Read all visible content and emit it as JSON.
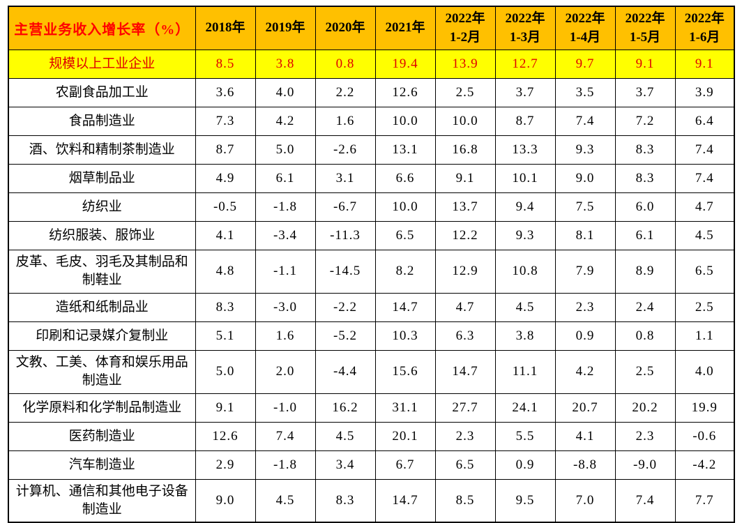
{
  "colors": {
    "header_bg": "#ffc000",
    "header_title_color": "#ff0000",
    "header_year_color": "#000000",
    "highlight_bg": "#ffff00",
    "highlight_text_color": "#e00000",
    "body_text_color": "#000000",
    "border_color": "#000000"
  },
  "table": {
    "title": "主营业务收入增长率（%）",
    "columns": [
      "2018年",
      "2019年",
      "2020年",
      "2021年",
      "2022年\n1-2月",
      "2022年\n1-3月",
      "2022年\n1-4月",
      "2022年\n1-5月",
      "2022年\n1-6月"
    ],
    "rows": [
      {
        "label": "规模以上工业企业",
        "highlight": true,
        "tall": false,
        "values": [
          "8.5",
          "3.8",
          "0.8",
          "19.4",
          "13.9",
          "12.7",
          "9.7",
          "9.1",
          "9.1"
        ]
      },
      {
        "label": "农副食品加工业",
        "highlight": false,
        "tall": false,
        "values": [
          "3.6",
          "4.0",
          "2.2",
          "12.6",
          "2.5",
          "3.7",
          "3.5",
          "3.7",
          "3.9"
        ]
      },
      {
        "label": "食品制造业",
        "highlight": false,
        "tall": false,
        "values": [
          "7.3",
          "4.2",
          "1.6",
          "10.0",
          "10.0",
          "8.7",
          "7.4",
          "7.2",
          "6.4"
        ]
      },
      {
        "label": "酒、饮料和精制茶制造业",
        "highlight": false,
        "tall": false,
        "values": [
          "8.7",
          "5.0",
          "-2.6",
          "13.1",
          "16.8",
          "13.3",
          "9.3",
          "8.3",
          "7.4"
        ]
      },
      {
        "label": "烟草制品业",
        "highlight": false,
        "tall": false,
        "values": [
          "4.9",
          "6.1",
          "3.1",
          "6.6",
          "9.1",
          "10.1",
          "9.0",
          "8.3",
          "7.4"
        ]
      },
      {
        "label": "纺织业",
        "highlight": false,
        "tall": false,
        "values": [
          "-0.5",
          "-1.8",
          "-6.7",
          "10.0",
          "13.7",
          "9.4",
          "7.5",
          "6.0",
          "4.7"
        ]
      },
      {
        "label": "纺织服装、服饰业",
        "highlight": false,
        "tall": false,
        "values": [
          "4.1",
          "-3.4",
          "-11.3",
          "6.5",
          "12.2",
          "9.3",
          "8.1",
          "6.1",
          "4.5"
        ]
      },
      {
        "label": "皮革、毛皮、羽毛及其制品和制鞋业",
        "highlight": false,
        "tall": true,
        "values": [
          "4.8",
          "-1.1",
          "-14.5",
          "8.2",
          "12.9",
          "10.8",
          "7.9",
          "8.9",
          "6.5"
        ]
      },
      {
        "label": "造纸和纸制品业",
        "highlight": false,
        "tall": false,
        "values": [
          "8.3",
          "-3.0",
          "-2.2",
          "14.7",
          "4.7",
          "4.5",
          "2.3",
          "2.4",
          "2.5"
        ]
      },
      {
        "label": "印刷和记录媒介复制业",
        "highlight": false,
        "tall": false,
        "values": [
          "5.1",
          "1.6",
          "-5.2",
          "10.3",
          "6.3",
          "3.8",
          "0.9",
          "0.8",
          "1.1"
        ]
      },
      {
        "label": "文教、工美、体育和娱乐用品制造业",
        "highlight": false,
        "tall": true,
        "values": [
          "5.0",
          "2.0",
          "-4.4",
          "15.6",
          "14.7",
          "11.1",
          "4.2",
          "2.5",
          "4.0"
        ]
      },
      {
        "label": "化学原料和化学制品制造业",
        "highlight": false,
        "tall": false,
        "values": [
          "9.1",
          "-1.0",
          "16.2",
          "31.1",
          "27.7",
          "24.1",
          "20.7",
          "20.2",
          "19.9"
        ]
      },
      {
        "label": "医药制造业",
        "highlight": false,
        "tall": false,
        "values": [
          "12.6",
          "7.4",
          "4.5",
          "20.1",
          "2.3",
          "5.5",
          "4.1",
          "2.3",
          "-0.6"
        ]
      },
      {
        "label": "汽车制造业",
        "highlight": false,
        "tall": false,
        "values": [
          "2.9",
          "-1.8",
          "3.4",
          "6.7",
          "6.5",
          "0.9",
          "-8.8",
          "-9.0",
          "-4.2"
        ]
      },
      {
        "label": "计算机、通信和其他电子设备制造业",
        "highlight": false,
        "tall": true,
        "values": [
          "9.0",
          "4.5",
          "8.3",
          "14.7",
          "8.5",
          "9.5",
          "7.0",
          "7.4",
          "7.7"
        ]
      }
    ]
  },
  "chart_data": {
    "type": "table",
    "title": "主营业务收入增长率（%）",
    "columns": [
      "主营业务收入增长率（%）",
      "2018年",
      "2019年",
      "2020年",
      "2021年",
      "2022年1-2月",
      "2022年1-3月",
      "2022年1-4月",
      "2022年1-5月",
      "2022年1-6月"
    ],
    "rows": [
      {
        "label": "规模以上工业企业",
        "values": [
          8.5,
          3.8,
          0.8,
          19.4,
          13.9,
          12.7,
          9.7,
          9.1,
          9.1
        ]
      },
      {
        "label": "农副食品加工业",
        "values": [
          3.6,
          4.0,
          2.2,
          12.6,
          2.5,
          3.7,
          3.5,
          3.7,
          3.9
        ]
      },
      {
        "label": "食品制造业",
        "values": [
          7.3,
          4.2,
          1.6,
          10.0,
          10.0,
          8.7,
          7.4,
          7.2,
          6.4
        ]
      },
      {
        "label": "酒、饮料和精制茶制造业",
        "values": [
          8.7,
          5.0,
          -2.6,
          13.1,
          16.8,
          13.3,
          9.3,
          8.3,
          7.4
        ]
      },
      {
        "label": "烟草制品业",
        "values": [
          4.9,
          6.1,
          3.1,
          6.6,
          9.1,
          10.1,
          9.0,
          8.3,
          7.4
        ]
      },
      {
        "label": "纺织业",
        "values": [
          -0.5,
          -1.8,
          -6.7,
          10.0,
          13.7,
          9.4,
          7.5,
          6.0,
          4.7
        ]
      },
      {
        "label": "纺织服装、服饰业",
        "values": [
          4.1,
          -3.4,
          -11.3,
          6.5,
          12.2,
          9.3,
          8.1,
          6.1,
          4.5
        ]
      },
      {
        "label": "皮革、毛皮、羽毛及其制品和制鞋业",
        "values": [
          4.8,
          -1.1,
          -14.5,
          8.2,
          12.9,
          10.8,
          7.9,
          8.9,
          6.5
        ]
      },
      {
        "label": "造纸和纸制品业",
        "values": [
          8.3,
          -3.0,
          -2.2,
          14.7,
          4.7,
          4.5,
          2.3,
          2.4,
          2.5
        ]
      },
      {
        "label": "印刷和记录媒介复制业",
        "values": [
          5.1,
          1.6,
          -5.2,
          10.3,
          6.3,
          3.8,
          0.9,
          0.8,
          1.1
        ]
      },
      {
        "label": "文教、工美、体育和娱乐用品制造业",
        "values": [
          5.0,
          2.0,
          -4.4,
          15.6,
          14.7,
          11.1,
          4.2,
          2.5,
          4.0
        ]
      },
      {
        "label": "化学原料和化学制品制造业",
        "values": [
          9.1,
          -1.0,
          16.2,
          31.1,
          27.7,
          24.1,
          20.7,
          20.2,
          19.9
        ]
      },
      {
        "label": "医药制造业",
        "values": [
          12.6,
          7.4,
          4.5,
          20.1,
          2.3,
          5.5,
          4.1,
          2.3,
          -0.6
        ]
      },
      {
        "label": "汽车制造业",
        "values": [
          2.9,
          -1.8,
          3.4,
          6.7,
          6.5,
          0.9,
          -8.8,
          -9.0,
          -4.2
        ]
      },
      {
        "label": "计算机、通信和其他电子设备制造业",
        "values": [
          9.0,
          4.5,
          8.3,
          14.7,
          8.5,
          9.5,
          7.0,
          7.4,
          7.7
        ]
      }
    ]
  }
}
